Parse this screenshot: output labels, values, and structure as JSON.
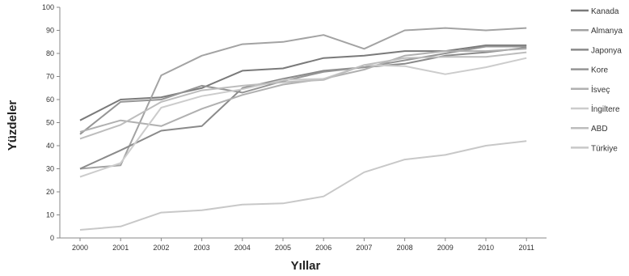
{
  "chart_data": {
    "type": "line",
    "title": "",
    "xlabel": "Yıllar",
    "ylabel": "Yüzdeler",
    "x": [
      "2000",
      "2001",
      "2002",
      "2003",
      "2004",
      "2005",
      "2006",
      "2007",
      "2008",
      "2009",
      "2010",
      "2011"
    ],
    "ylim": [
      0,
      100
    ],
    "yticks": [
      0,
      10,
      20,
      30,
      40,
      50,
      60,
      70,
      80,
      90,
      100
    ],
    "grid": false,
    "legend_position": "right",
    "series": [
      {
        "name": "Kanada",
        "color": "#7a7a7a",
        "values": [
          51,
          60,
          61,
          65,
          72.5,
          73.5,
          78,
          79,
          81,
          81,
          83.5,
          83.5
        ]
      },
      {
        "name": "Almanya",
        "color": "#a3a3a3",
        "values": [
          30,
          31.5,
          70.5,
          79,
          84,
          85,
          88,
          82,
          90,
          91,
          90,
          91
        ]
      },
      {
        "name": "Japonya",
        "color": "#8a8a8a",
        "values": [
          30,
          38,
          46.5,
          48.5,
          65,
          69,
          72.5,
          74,
          75.5,
          79,
          80.5,
          82.5
        ]
      },
      {
        "name": "Kore",
        "color": "#959595",
        "values": [
          45,
          59,
          60,
          66,
          63,
          68,
          72,
          74,
          77,
          80,
          83,
          83
        ]
      },
      {
        "name": "İsveç",
        "color": "#b0b0b0",
        "values": [
          46,
          51,
          48.5,
          56,
          62,
          66.5,
          69,
          73,
          79,
          81,
          81,
          82
        ]
      },
      {
        "name": "İngiltere",
        "color": "#cccccc",
        "values": [
          26.5,
          32.5,
          56.5,
          61.5,
          64.5,
          68.5,
          69,
          75,
          74.5,
          71,
          74,
          78
        ]
      },
      {
        "name": "ABD",
        "color": "#bdbdbd",
        "values": [
          43,
          49,
          59,
          64,
          66,
          67.5,
          68.5,
          75,
          78,
          78.5,
          78.5,
          80.5
        ]
      },
      {
        "name": "Türkiye",
        "color": "#c8c8c8",
        "values": [
          3.5,
          5,
          11,
          12,
          14.5,
          15,
          18,
          28.5,
          34,
          36,
          40,
          42
        ]
      }
    ]
  }
}
